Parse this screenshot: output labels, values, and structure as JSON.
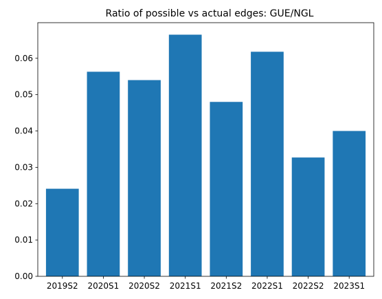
{
  "chart_data": {
    "type": "bar",
    "title": "Ratio of possible vs actual edges: GUE/NGL",
    "xlabel": "",
    "ylabel": "",
    "categories": [
      "2019S2",
      "2020S1",
      "2020S2",
      "2021S1",
      "2021S2",
      "2022S1",
      "2022S2",
      "2023S1"
    ],
    "values": [
      0.0241,
      0.0563,
      0.054,
      0.0665,
      0.048,
      0.0618,
      0.0327,
      0.04
    ],
    "ylim": [
      0,
      0.0698
    ],
    "yticks": [
      0.0,
      0.01,
      0.02,
      0.03,
      0.04,
      0.05,
      0.06
    ],
    "ytick_labels": [
      "0.00",
      "0.01",
      "0.02",
      "0.03",
      "0.04",
      "0.05",
      "0.06"
    ],
    "bar_color": "#1f77b4",
    "grid": false,
    "legend": "none"
  }
}
